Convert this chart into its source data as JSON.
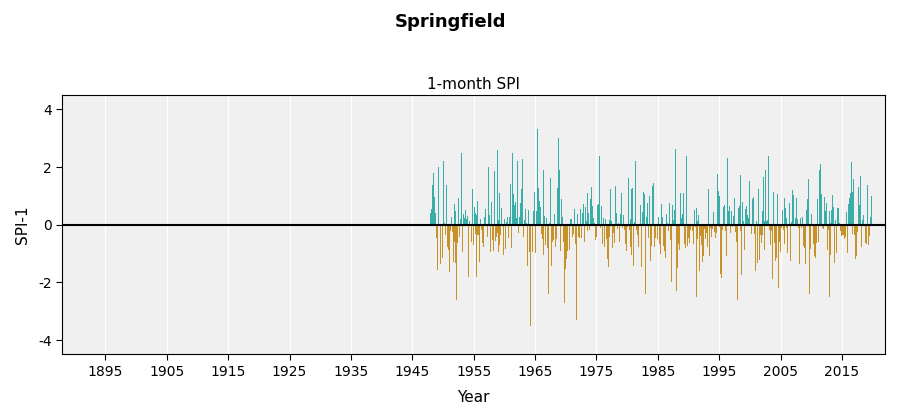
{
  "title": "Springfield",
  "subtitle": "1-month SPI",
  "ylabel": "SPI-1",
  "xlabel": "Year",
  "xlim": [
    1888,
    2022
  ],
  "ylim": [
    -4.5,
    4.5
  ],
  "yticks": [
    -4,
    -2,
    0,
    2,
    4
  ],
  "xticks": [
    1895,
    1905,
    1915,
    1925,
    1935,
    1945,
    1955,
    1965,
    1975,
    1985,
    1995,
    2005,
    2015
  ],
  "data_start_year": 1948,
  "data_end_year": 2019,
  "positive_color": "#3aada8",
  "negative_color": "#c8922a",
  "zero_line_color": "#000000",
  "grid_color": "#c0c0c0",
  "background_color": "#ffffff",
  "plot_bg_color": "#f0f0f0",
  "title_fontsize": 13,
  "subtitle_fontsize": 11,
  "axis_label_fontsize": 11,
  "tick_fontsize": 10,
  "tick_color": "#8B1A1A",
  "seed": 42,
  "bar_width": 0.092
}
